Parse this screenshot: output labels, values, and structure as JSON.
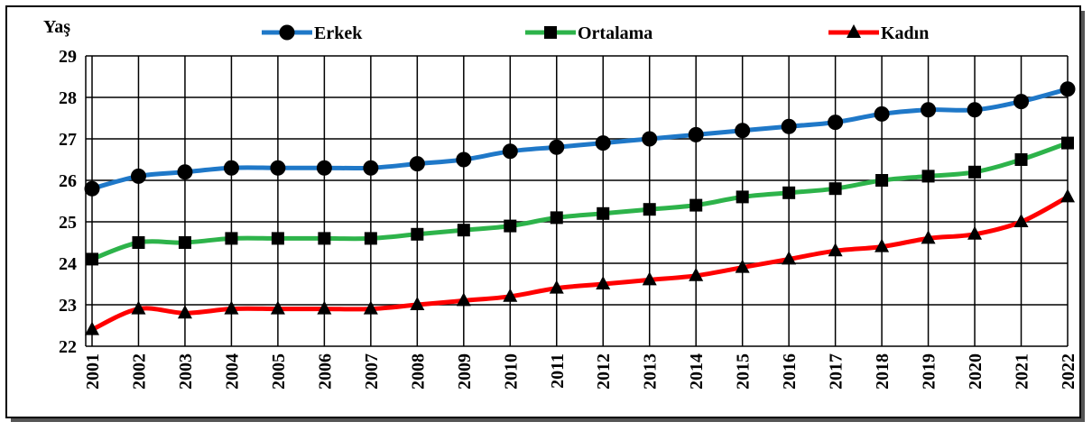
{
  "chart_data": {
    "type": "line",
    "y_label": "Yaş",
    "categories": [
      "2001",
      "2002",
      "2003",
      "2004",
      "2005",
      "2006",
      "2007",
      "2008",
      "2009",
      "2010",
      "2011",
      "2012",
      "2013",
      "2014",
      "2015",
      "2016",
      "2017",
      "2018",
      "2019",
      "2020",
      "2021",
      "2022"
    ],
    "series": [
      {
        "name": "Erkek",
        "color": "#1f78c8",
        "marker": "circle",
        "values": [
          25.8,
          26.1,
          26.2,
          26.3,
          26.3,
          26.3,
          26.3,
          26.4,
          26.5,
          26.7,
          26.8,
          26.9,
          27.0,
          27.1,
          27.2,
          27.3,
          27.4,
          27.6,
          27.7,
          27.7,
          27.9,
          28.2
        ]
      },
      {
        "name": "Ortalama",
        "color": "#2db34a",
        "marker": "square",
        "values": [
          24.1,
          24.5,
          24.5,
          24.6,
          24.6,
          24.6,
          24.6,
          24.7,
          24.8,
          24.9,
          25.1,
          25.2,
          25.3,
          25.4,
          25.6,
          25.7,
          25.8,
          26.0,
          26.1,
          26.2,
          26.5,
          26.9
        ]
      },
      {
        "name": "Kadın",
        "color": "#ff0000",
        "marker": "triangle",
        "values": [
          22.4,
          22.9,
          22.8,
          22.9,
          22.9,
          22.9,
          22.9,
          23.0,
          23.1,
          23.2,
          23.4,
          23.5,
          23.6,
          23.7,
          23.9,
          24.1,
          24.3,
          24.4,
          24.6,
          24.7,
          25.0,
          25.6
        ]
      }
    ],
    "ylim": [
      22,
      29
    ],
    "yticks": [
      22,
      23,
      24,
      25,
      26,
      27,
      28,
      29
    ],
    "grid": true
  }
}
